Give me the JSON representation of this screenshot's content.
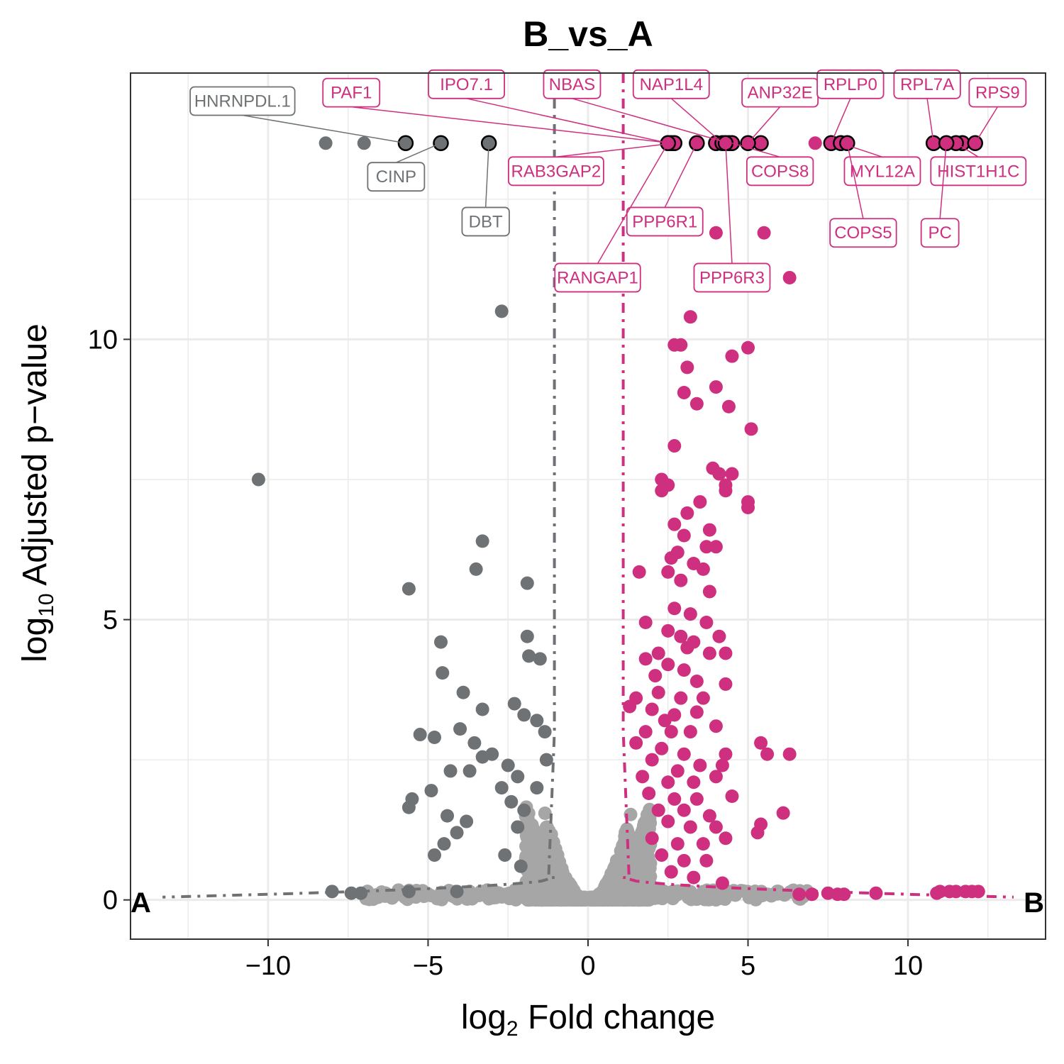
{
  "chart_data": {
    "type": "scatter",
    "title": "B_vs_A",
    "xlabel": {
      "base": "log",
      "sub": "2",
      "rest": " Fold change"
    },
    "ylabel": {
      "base": "log",
      "sub": "10",
      "rest": " Adjusted p−value"
    },
    "xlim": [
      -14.3,
      14.3
    ],
    "ylim": [
      -0.7,
      14.75
    ],
    "x_ticks": [
      -10,
      -5,
      0,
      5,
      10
    ],
    "x_tick_labels": [
      "−10",
      "−5",
      "0",
      "5",
      "10"
    ],
    "y_ticks": [
      0,
      5,
      10
    ],
    "y_tick_labels": [
      "0",
      "5",
      "10"
    ],
    "grid": true,
    "corner_labels": {
      "left": "A",
      "right": "B"
    },
    "colors": {
      "nonsig": "#a6a6a6",
      "A": "#6e7274",
      "B": "#cf2f7f"
    },
    "thresholds": {
      "A": {
        "x": -1.05,
        "x_far": -13.3,
        "y_far": 0.05
      },
      "B": {
        "x": 1.1,
        "x_far": 13.3,
        "y_far": 0.05
      }
    },
    "series": [
      {
        "name": "A",
        "color": "#6e7274",
        "points": [
          [
            -8.2,
            13.5
          ],
          [
            -7.0,
            13.5
          ],
          [
            -2.7,
            10.5
          ],
          [
            -10.3,
            7.5
          ],
          [
            -3.3,
            6.4
          ],
          [
            -3.5,
            5.9
          ],
          [
            -5.6,
            5.55
          ],
          [
            -1.9,
            5.65
          ],
          [
            -4.6,
            4.6
          ],
          [
            -4.55,
            4.05
          ],
          [
            -3.9,
            3.7
          ],
          [
            -3.3,
            3.4
          ],
          [
            -4.0,
            3.05
          ],
          [
            -3.55,
            2.8
          ],
          [
            -4.8,
            2.9
          ],
          [
            -5.25,
            2.95
          ],
          [
            -3.3,
            2.55
          ],
          [
            -4.3,
            2.3
          ],
          [
            -3.7,
            2.3
          ],
          [
            -4.9,
            1.95
          ],
          [
            -5.5,
            1.8
          ],
          [
            -5.6,
            1.65
          ],
          [
            -4.4,
            1.5
          ],
          [
            -3.8,
            1.4
          ],
          [
            -4.1,
            1.2
          ],
          [
            -4.5,
            1.0
          ],
          [
            -4.8,
            0.8
          ],
          [
            -3.0,
            2.6
          ],
          [
            -2.7,
            2.0
          ],
          [
            -2.4,
            1.75
          ],
          [
            -2.2,
            1.3
          ],
          [
            -2.0,
            1.6
          ],
          [
            -1.9,
            4.7
          ],
          [
            -1.85,
            4.35
          ],
          [
            -1.5,
            4.3
          ],
          [
            -2.3,
            3.5
          ],
          [
            -2.0,
            3.3
          ],
          [
            -1.6,
            3.2
          ],
          [
            -2.5,
            2.4
          ],
          [
            -2.2,
            2.2
          ],
          [
            -1.35,
            3.0
          ],
          [
            -1.3,
            2.5
          ],
          [
            -1.6,
            2.0
          ],
          [
            -2.6,
            0.8
          ],
          [
            -2.1,
            0.6
          ],
          [
            -8.0,
            0.15
          ],
          [
            -7.4,
            0.12
          ],
          [
            -7.1,
            0.12
          ],
          [
            -5.6,
            0.15
          ],
          [
            -4.1,
            0.15
          ]
        ]
      },
      {
        "name": "B",
        "color": "#cf2f7f",
        "points": [
          [
            7.1,
            13.5
          ],
          [
            5.5,
            11.9
          ],
          [
            4.0,
            11.9
          ],
          [
            6.3,
            11.1
          ],
          [
            3.2,
            10.4
          ],
          [
            2.7,
            9.9
          ],
          [
            2.9,
            9.9
          ],
          [
            4.5,
            9.7
          ],
          [
            5.0,
            9.85
          ],
          [
            3.1,
            9.5
          ],
          [
            4.0,
            9.15
          ],
          [
            3.0,
            9.05
          ],
          [
            3.4,
            8.85
          ],
          [
            4.4,
            8.8
          ],
          [
            5.1,
            8.4
          ],
          [
            2.7,
            8.1
          ],
          [
            3.9,
            7.7
          ],
          [
            4.1,
            7.6
          ],
          [
            4.5,
            7.6
          ],
          [
            4.3,
            7.4
          ],
          [
            4.3,
            7.3
          ],
          [
            2.3,
            7.5
          ],
          [
            2.5,
            7.4
          ],
          [
            2.3,
            7.3
          ],
          [
            3.5,
            7.1
          ],
          [
            5.0,
            7.1
          ],
          [
            5.0,
            7.0
          ],
          [
            3.1,
            6.9
          ],
          [
            2.7,
            6.7
          ],
          [
            3.0,
            6.5
          ],
          [
            3.8,
            6.6
          ],
          [
            3.7,
            6.3
          ],
          [
            4.0,
            6.3
          ],
          [
            2.8,
            6.2
          ],
          [
            2.6,
            6.1
          ],
          [
            3.3,
            6.0
          ],
          [
            3.6,
            5.9
          ],
          [
            2.5,
            5.85
          ],
          [
            1.6,
            5.85
          ],
          [
            2.9,
            5.7
          ],
          [
            3.8,
            5.5
          ],
          [
            2.7,
            5.2
          ],
          [
            3.2,
            5.1
          ],
          [
            1.8,
            4.95
          ],
          [
            3.7,
            4.95
          ],
          [
            2.5,
            4.8
          ],
          [
            2.9,
            4.7
          ],
          [
            3.3,
            4.6
          ],
          [
            4.1,
            4.7
          ],
          [
            3.1,
            4.5
          ],
          [
            3.8,
            4.4
          ],
          [
            4.3,
            4.4
          ],
          [
            2.2,
            4.4
          ],
          [
            1.8,
            4.3
          ],
          [
            2.5,
            4.2
          ],
          [
            3.0,
            4.1
          ],
          [
            2.1,
            4.0
          ],
          [
            3.4,
            3.9
          ],
          [
            4.3,
            3.85
          ],
          [
            1.5,
            3.6
          ],
          [
            2.2,
            3.7
          ],
          [
            2.9,
            3.6
          ],
          [
            3.6,
            3.6
          ],
          [
            1.3,
            3.45
          ],
          [
            2.0,
            3.4
          ],
          [
            2.7,
            3.3
          ],
          [
            3.4,
            3.35
          ],
          [
            2.4,
            3.2
          ],
          [
            1.8,
            3.0
          ],
          [
            3.2,
            3.0
          ],
          [
            2.6,
            3.0
          ],
          [
            4.0,
            3.1
          ],
          [
            1.5,
            2.8
          ],
          [
            2.3,
            2.7
          ],
          [
            3.0,
            2.6
          ],
          [
            4.3,
            2.6
          ],
          [
            5.4,
            2.8
          ],
          [
            5.6,
            2.6
          ],
          [
            6.3,
            2.6
          ],
          [
            2.0,
            2.5
          ],
          [
            2.8,
            2.3
          ],
          [
            3.5,
            2.4
          ],
          [
            4.2,
            2.4
          ],
          [
            1.7,
            2.2
          ],
          [
            2.5,
            2.1
          ],
          [
            3.3,
            2.1
          ],
          [
            4.0,
            2.2
          ],
          [
            1.9,
            1.9
          ],
          [
            2.7,
            1.8
          ],
          [
            3.4,
            1.8
          ],
          [
            4.5,
            1.85
          ],
          [
            2.2,
            1.6
          ],
          [
            3.0,
            1.6
          ],
          [
            3.8,
            1.5
          ],
          [
            2.5,
            1.4
          ],
          [
            3.2,
            1.3
          ],
          [
            4.0,
            1.3
          ],
          [
            6.1,
            1.55
          ],
          [
            5.4,
            1.35
          ],
          [
            5.3,
            1.2
          ],
          [
            2.0,
            1.1
          ],
          [
            2.8,
            1.0
          ],
          [
            3.6,
            1.0
          ],
          [
            4.3,
            1.1
          ],
          [
            2.3,
            0.8
          ],
          [
            3.0,
            0.7
          ],
          [
            3.7,
            0.7
          ],
          [
            2.6,
            0.5
          ],
          [
            3.3,
            0.4
          ],
          [
            4.2,
            0.3
          ],
          [
            6.6,
            0.1
          ],
          [
            7.0,
            0.1
          ],
          [
            7.5,
            0.12
          ],
          [
            7.8,
            0.1
          ],
          [
            8.0,
            0.1
          ],
          [
            9.0,
            0.12
          ],
          [
            11.0,
            0.15
          ],
          [
            11.3,
            0.15
          ],
          [
            11.5,
            0.15
          ],
          [
            11.8,
            0.15
          ],
          [
            12.0,
            0.15
          ],
          [
            12.2,
            0.15
          ],
          [
            10.9,
            0.12
          ]
        ]
      }
    ],
    "labeled_genes": [
      {
        "name": "HNRNPDL.1",
        "group": "A",
        "x": -5.7,
        "y": 13.5,
        "label_x": -10.8,
        "label_y": 14.25
      },
      {
        "name": "CINP",
        "group": "A",
        "x": -4.6,
        "y": 13.5,
        "label_x": -6.0,
        "label_y": 12.9
      },
      {
        "name": "DBT",
        "group": "A",
        "x": -3.1,
        "y": 13.5,
        "label_x": -3.2,
        "label_y": 12.1
      },
      {
        "name": "PAF1",
        "group": "B",
        "x": 2.6,
        "y": 13.5,
        "label_x": -7.4,
        "label_y": 14.4
      },
      {
        "name": "IPO7.1",
        "group": "B",
        "x": 2.5,
        "y": 13.5,
        "label_x": -3.8,
        "label_y": 14.55
      },
      {
        "name": "NBAS",
        "group": "B",
        "x": 4.4,
        "y": 13.5,
        "label_x": -0.5,
        "label_y": 14.55
      },
      {
        "name": "NAP1L4",
        "group": "B",
        "x": 4.2,
        "y": 13.5,
        "label_x": 2.6,
        "label_y": 14.55
      },
      {
        "name": "ANP32E",
        "group": "B",
        "x": 5.0,
        "y": 13.5,
        "label_x": 6.0,
        "label_y": 14.4
      },
      {
        "name": "RPLP0",
        "group": "B",
        "x": 7.6,
        "y": 13.5,
        "label_x": 8.2,
        "label_y": 14.55
      },
      {
        "name": "RPL7A",
        "group": "B",
        "x": 10.8,
        "y": 13.5,
        "label_x": 10.6,
        "label_y": 14.55
      },
      {
        "name": "RPS9",
        "group": "B",
        "x": 12.1,
        "y": 13.5,
        "label_x": 12.8,
        "label_y": 14.4
      },
      {
        "name": "RAB3GAP2",
        "group": "B",
        "x": 2.7,
        "y": 13.5,
        "label_x": -1.0,
        "label_y": 13.0
      },
      {
        "name": "COPS8",
        "group": "B",
        "x": 4.5,
        "y": 13.5,
        "label_x": 6.0,
        "label_y": 13.0
      },
      {
        "name": "MYL12A",
        "group": "B",
        "x": 7.9,
        "y": 13.5,
        "label_x": 9.2,
        "label_y": 13.0
      },
      {
        "name": "HIST1H1C",
        "group": "B",
        "x": 11.5,
        "y": 13.5,
        "label_x": 12.2,
        "label_y": 13.0
      },
      {
        "name": "PPP6R1",
        "group": "B",
        "x": 3.4,
        "y": 13.5,
        "label_x": 2.4,
        "label_y": 12.1
      },
      {
        "name": "COPS5",
        "group": "B",
        "x": 8.1,
        "y": 13.5,
        "label_x": 8.6,
        "label_y": 11.9
      },
      {
        "name": "PC",
        "group": "B",
        "x": 11.2,
        "y": 13.5,
        "label_x": 11.0,
        "label_y": 11.9
      },
      {
        "name": "RANGAP1",
        "group": "B",
        "x": 2.5,
        "y": 13.5,
        "label_x": 0.3,
        "label_y": 11.1
      },
      {
        "name": "PPP6R3",
        "group": "B",
        "x": 4.3,
        "y": 13.5,
        "label_x": 4.5,
        "label_y": 11.1
      }
    ],
    "highlighted_extra": [
      {
        "group": "B",
        "x": 4.0,
        "y": 13.5
      },
      {
        "group": "B",
        "x": 5.4,
        "y": 13.5
      },
      {
        "group": "B",
        "x": 11.7,
        "y": 13.5
      }
    ]
  }
}
